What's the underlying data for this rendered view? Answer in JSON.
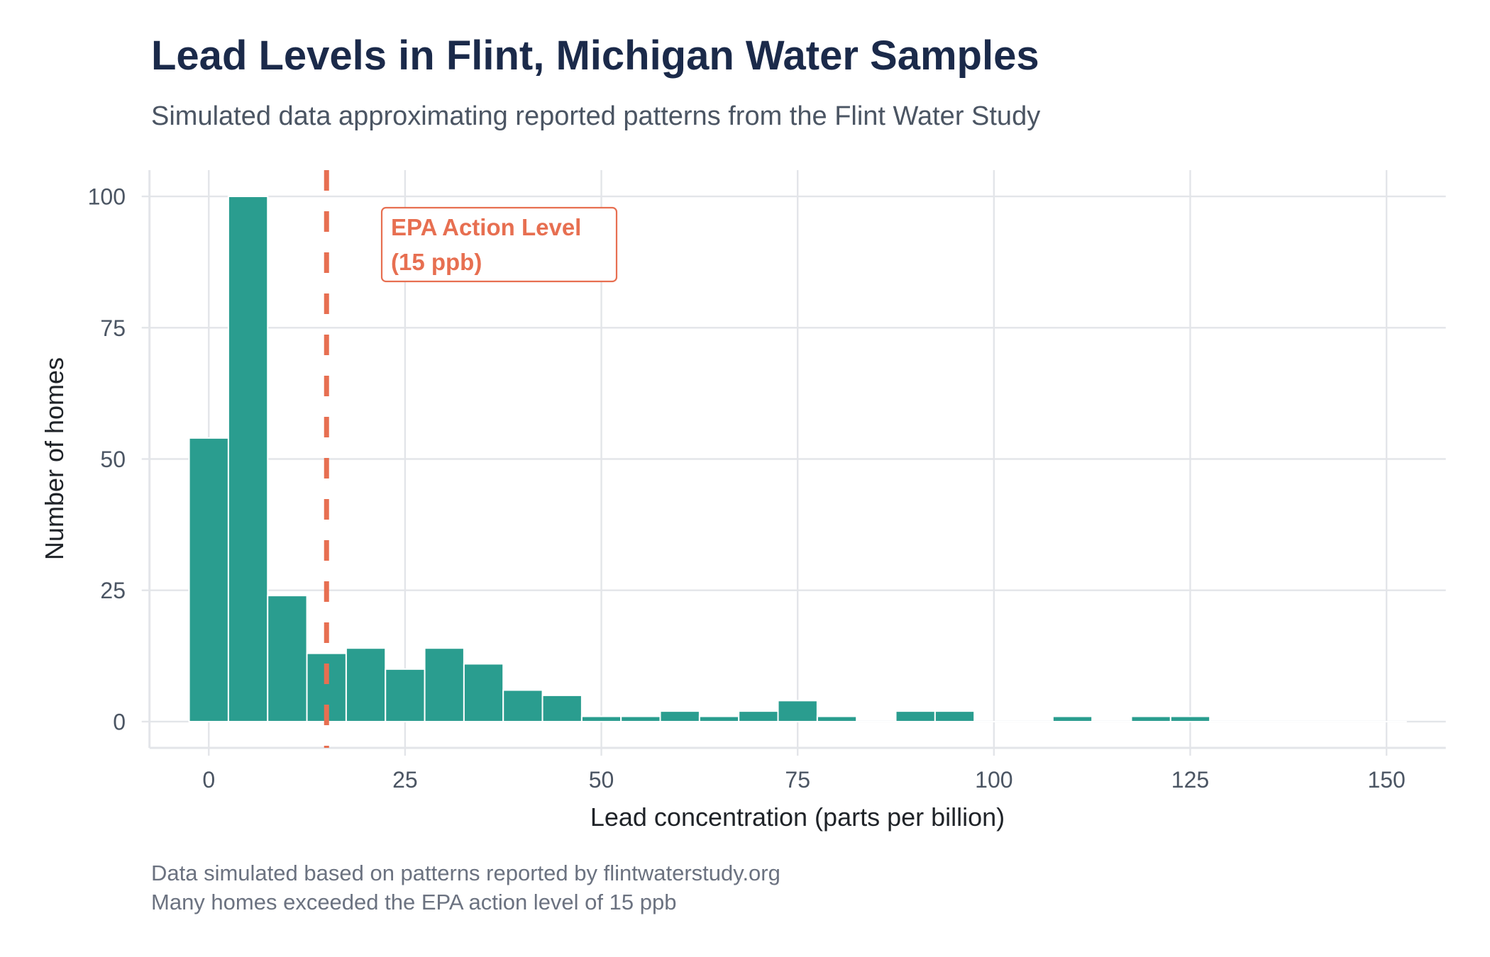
{
  "header": {
    "title": "Lead Levels in Flint, Michigan Water Samples",
    "subtitle": "Simulated data approximating reported patterns from the Flint Water Study"
  },
  "caption": {
    "line1": "Data simulated based on patterns reported by flintwaterstudy.org",
    "line2": "Many homes exceeded the EPA action level of 15 ppb"
  },
  "colors": {
    "bar_fill": "#2a9d8f",
    "bar_outline": "#ffffff",
    "reference_line": "#e76f51",
    "grid": "#e3e5e9",
    "title": "#1b2a4a"
  },
  "chart_data": {
    "type": "bar",
    "subtype": "histogram",
    "title": "Lead Levels in Flint, Michigan Water Samples",
    "subtitle": "Simulated data approximating reported patterns from the Flint Water Study",
    "xlabel": "Lead concentration (parts per billion)",
    "ylabel": "Number of homes",
    "binwidth": 5,
    "bin_centers": [
      0,
      5,
      10,
      15,
      20,
      25,
      30,
      35,
      40,
      45,
      50,
      55,
      60,
      65,
      70,
      75,
      80,
      85,
      90,
      95,
      100,
      105,
      110,
      115,
      120,
      125,
      130,
      135,
      140,
      145,
      150
    ],
    "values": [
      54,
      100,
      24,
      13,
      14,
      10,
      14,
      11,
      6,
      5,
      1,
      1,
      2,
      1,
      2,
      4,
      1,
      0,
      2,
      2,
      0,
      0,
      1,
      0,
      1,
      1,
      0,
      0,
      0,
      0,
      0
    ],
    "xlim": [
      -7.55,
      157.55
    ],
    "ylim": [
      -5,
      105
    ],
    "x_ticks": [
      0,
      25,
      50,
      75,
      100,
      125,
      150
    ],
    "x_tick_labels": [
      "0",
      "25",
      "50",
      "75",
      "100",
      "125",
      "150"
    ],
    "y_ticks": [
      0,
      25,
      50,
      75,
      100
    ],
    "y_tick_labels": [
      "0",
      "25",
      "50",
      "75",
      "100"
    ],
    "grid": true,
    "reference_line": {
      "x": 15,
      "style": "dashed",
      "label_line1": "EPA Action Level",
      "label_line2": "(15 ppb)"
    },
    "legend": "none"
  }
}
